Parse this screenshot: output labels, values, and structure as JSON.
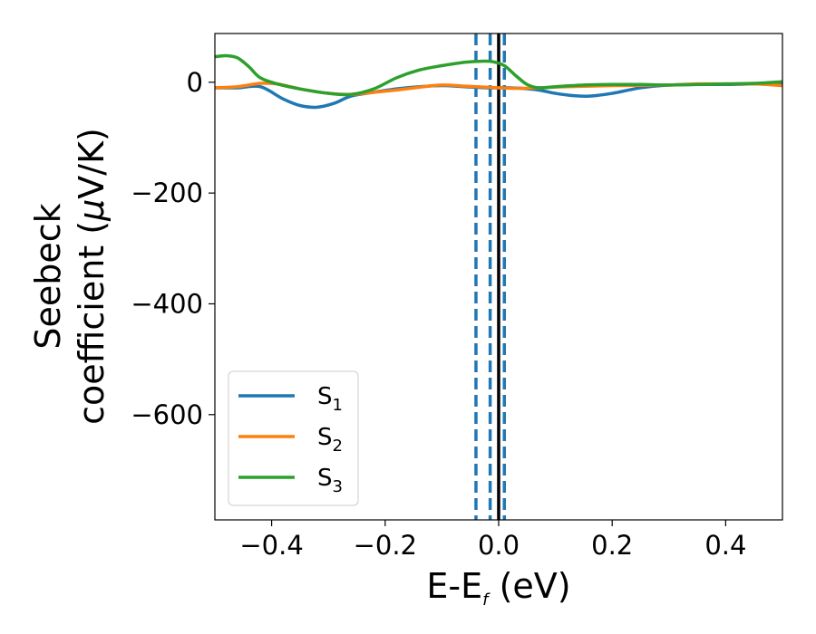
{
  "chart_data": {
    "type": "line",
    "title": "",
    "xlabel": {
      "main": "E-E",
      "sub": "f",
      "unit": " (eV)"
    },
    "ylabel": {
      "line1": "Seebeck",
      "line2_prefix": "coefficient  (",
      "line2_mu": "μ",
      "line2_suffix": "V/K)"
    },
    "xlim": [
      -0.5,
      0.5
    ],
    "ylim": [
      -790,
      88
    ],
    "xticks": [
      -0.4,
      -0.2,
      0.0,
      0.2,
      0.4
    ],
    "xtick_labels": [
      "−0.4",
      "−0.2",
      "0.0",
      "0.2",
      "0.4"
    ],
    "yticks": [
      0,
      -200,
      -400,
      -600
    ],
    "ytick_labels": [
      "0",
      "−200",
      "−400",
      "−600"
    ],
    "grid": false,
    "legend_position": "lower-left",
    "series": [
      {
        "name": "S",
        "subscript": "1",
        "color": "#1f77b4",
        "x": [
          -0.5,
          -0.46,
          -0.42,
          -0.38,
          -0.35,
          -0.32,
          -0.29,
          -0.26,
          -0.22,
          -0.18,
          -0.14,
          -0.1,
          -0.06,
          -0.02,
          0.0,
          0.02,
          0.04,
          0.07,
          0.1,
          0.13,
          0.16,
          0.2,
          0.25,
          0.3,
          0.35,
          0.4,
          0.45,
          0.5
        ],
        "y": [
          -10,
          -10,
          -8,
          -30,
          -42,
          -45,
          -38,
          -25,
          -18,
          -12,
          -8,
          -6,
          -8,
          -10,
          -10,
          -10,
          -11,
          -14,
          -20,
          -24,
          -25,
          -20,
          -10,
          -5,
          -4,
          -4,
          -3,
          -3
        ]
      },
      {
        "name": "S",
        "subscript": "2",
        "color": "#ff7f0e",
        "x": [
          -0.5,
          -0.46,
          -0.42,
          -0.39,
          -0.35,
          -0.3,
          -0.26,
          -0.22,
          -0.18,
          -0.14,
          -0.1,
          -0.06,
          -0.02,
          0.0,
          0.03,
          0.07,
          0.12,
          0.2,
          0.3,
          0.35,
          0.4,
          0.45,
          0.5
        ],
        "y": [
          -10,
          -8,
          -2,
          -3,
          -12,
          -20,
          -22,
          -18,
          -14,
          -9,
          -5,
          -7,
          -9,
          -10,
          -11,
          -10,
          -8,
          -6,
          -5,
          -3,
          -3,
          -3,
          -6
        ]
      },
      {
        "name": "S",
        "subscript": "3",
        "color": "#2ca02c",
        "x": [
          -0.5,
          -0.48,
          -0.46,
          -0.44,
          -0.42,
          -0.39,
          -0.35,
          -0.3,
          -0.26,
          -0.22,
          -0.18,
          -0.14,
          -0.1,
          -0.06,
          -0.03,
          -0.01,
          0.01,
          0.03,
          0.05,
          0.07,
          0.1,
          0.15,
          0.2,
          0.25,
          0.3,
          0.35,
          0.4,
          0.45,
          0.5
        ],
        "y": [
          46,
          48,
          44,
          28,
          8,
          -3,
          -12,
          -20,
          -22,
          -12,
          8,
          22,
          30,
          36,
          38,
          37,
          30,
          12,
          -4,
          -10,
          -8,
          -5,
          -4,
          -4,
          -5,
          -4,
          -3,
          -2,
          1
        ]
      }
    ],
    "vlines": [
      {
        "x": -0.04,
        "style": "dashed",
        "color": "#1f77b4"
      },
      {
        "x": -0.015,
        "style": "dashed",
        "color": "#1f77b4"
      },
      {
        "x": 0.01,
        "style": "dashed",
        "color": "#1f77b4"
      },
      {
        "x": 0.0,
        "style": "solid",
        "color": "#000000"
      }
    ]
  }
}
